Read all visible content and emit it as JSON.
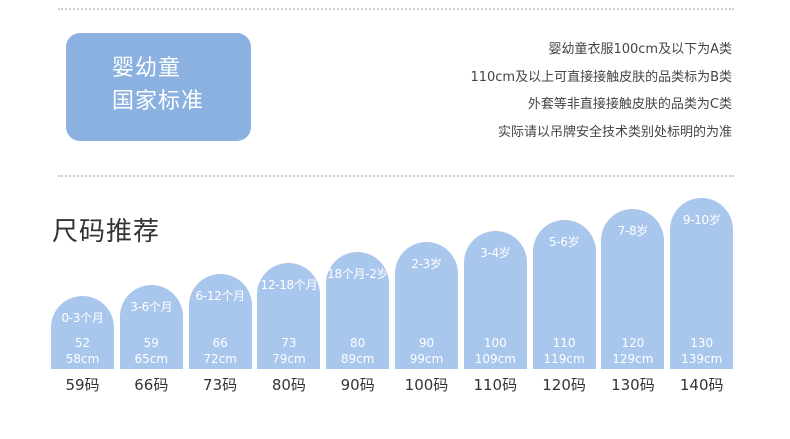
{
  "standard": {
    "badge_line1": "婴幼童",
    "badge_line2": "国家标准",
    "notes": [
      "婴幼童衣服100cm及以下为A类",
      "110cm及以上可直接接触皮肤的品类标为B类",
      "外套等非直接接触皮肤的品类为C类",
      "实际请以吊牌安全技术类别处标明的为准"
    ]
  },
  "size_guide": {
    "title": "尺码推荐",
    "sizes": [
      {
        "age": "0-3个月",
        "min": "52",
        "max": "58cm",
        "label": "59码",
        "level": 1
      },
      {
        "age": "3-6个月",
        "min": "59",
        "max": "65cm",
        "label": "66码",
        "level": 2
      },
      {
        "age": "6-12个月",
        "min": "66",
        "max": "72cm",
        "label": "73码",
        "level": 3
      },
      {
        "age": "12-18个月",
        "min": "73",
        "max": "79cm",
        "label": "80码",
        "level": 4
      },
      {
        "age": "18个月-2岁",
        "min": "80",
        "max": "89cm",
        "label": "90码",
        "level": 5
      },
      {
        "age": "2-3岁",
        "min": "90",
        "max": "99cm",
        "label": "100码",
        "level": 6
      },
      {
        "age": "3-4岁",
        "min": "100",
        "max": "109cm",
        "label": "110码",
        "level": 7
      },
      {
        "age": "5-6岁",
        "min": "110",
        "max": "119cm",
        "label": "120码",
        "level": 8
      },
      {
        "age": "7-8岁",
        "min": "120",
        "max": "129cm",
        "label": "130码",
        "level": 9
      },
      {
        "age": "9-10岁",
        "min": "130",
        "max": "139cm",
        "label": "140码",
        "level": 10
      }
    ]
  },
  "colors": {
    "badge": "#8ab1e0",
    "bar": "#a9c6ec",
    "text": "#333333"
  }
}
